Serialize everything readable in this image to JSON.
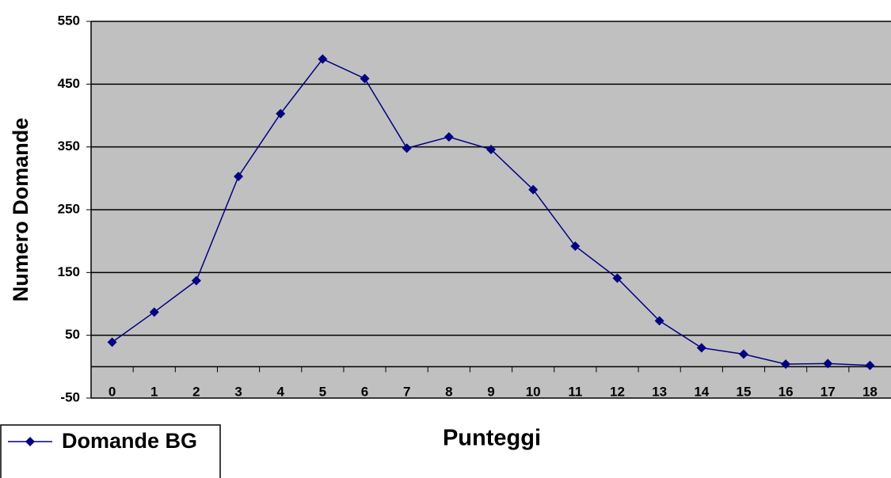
{
  "chart_data": {
    "type": "line",
    "x_label": "Punteggi",
    "y_label": "Numero Domande",
    "categories": [
      "0",
      "1",
      "2",
      "3",
      "4",
      "5",
      "6",
      "7",
      "8",
      "9",
      "10",
      "11",
      "12",
      "13",
      "14",
      "15",
      "16",
      "17",
      "18"
    ],
    "series": [
      {
        "name": "Domande BG",
        "color": "#000080",
        "values": [
          39,
          87,
          137,
          303,
          403,
          490,
          459,
          348,
          366,
          346,
          282,
          192,
          141,
          73,
          30,
          20,
          4,
          5,
          2
        ]
      }
    ],
    "ylim": [
      -50,
      550
    ],
    "yticks": [
      -50,
      50,
      150,
      250,
      350,
      450,
      550
    ],
    "grid": true,
    "legend": "bottom-left",
    "background": "#c0c0c0"
  }
}
